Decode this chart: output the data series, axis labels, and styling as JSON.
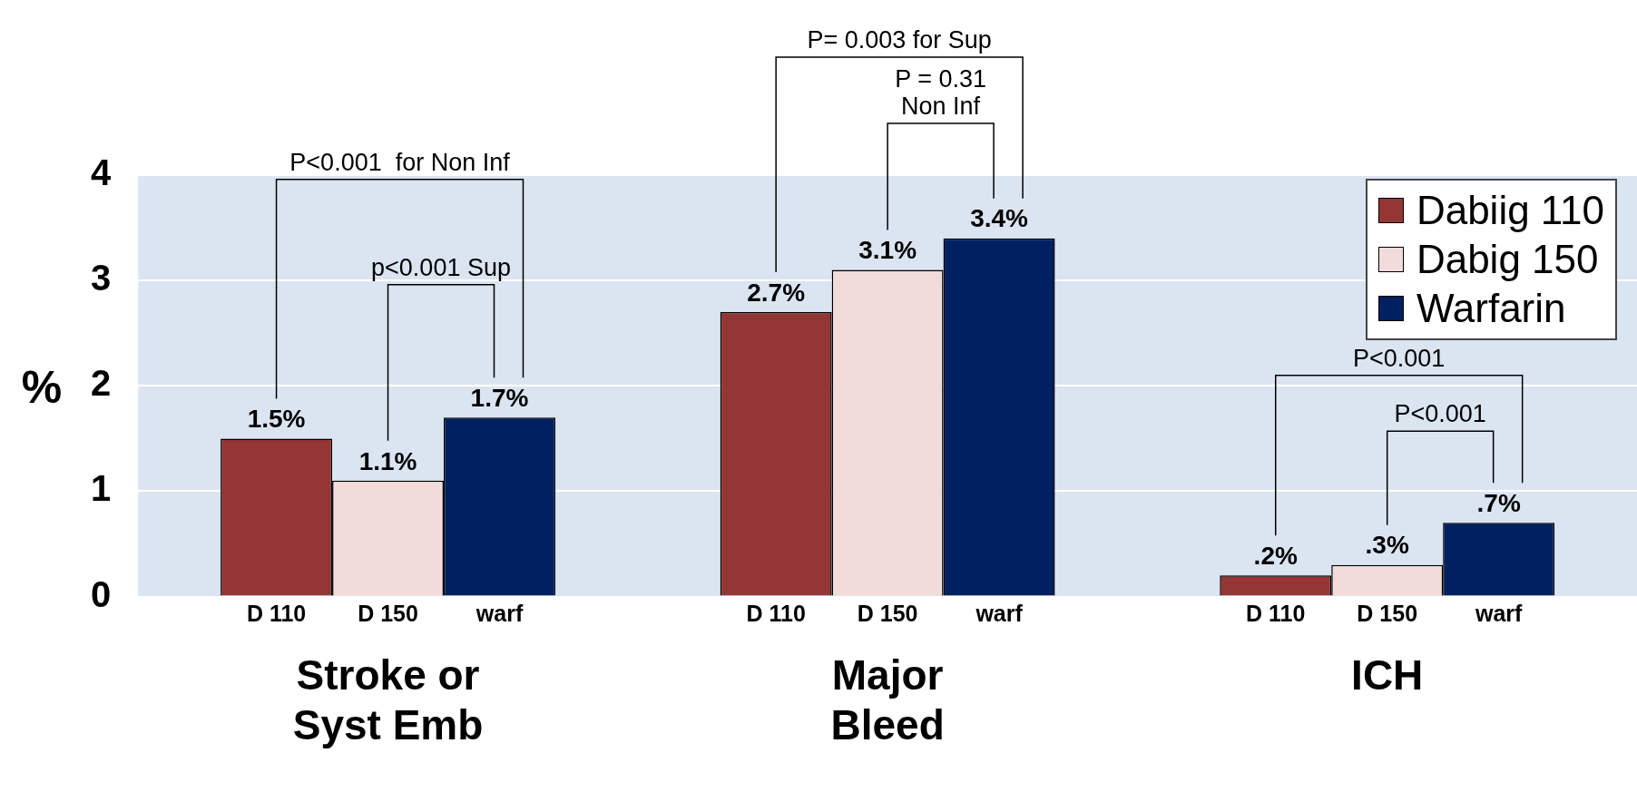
{
  "chart_data": {
    "type": "bar",
    "ylabel": "%",
    "categories": [
      "Stroke or Syst Emb",
      "Major Bleed",
      "ICH"
    ],
    "series": [
      {
        "name": "Dabiig 110",
        "color": "#943634",
        "values": [
          1.5,
          2.7,
          0.2
        ],
        "value_labels": [
          "1.5%",
          "2.7%",
          ".2%"
        ]
      },
      {
        "name": "Dabig 150",
        "color": "#f2dcdb",
        "values": [
          1.1,
          3.1,
          0.3
        ],
        "value_labels": [
          "1.1%",
          "3.1%",
          ".3%"
        ]
      },
      {
        "name": "Warfarin",
        "color": "#002060",
        "values": [
          1.7,
          3.4,
          0.7
        ],
        "value_labels": [
          "1.7%",
          "3.4%",
          ".7%"
        ]
      }
    ],
    "ylim": [
      0,
      4
    ],
    "yticks": [
      0,
      1,
      2,
      3,
      4
    ],
    "grid": "y",
    "legend": "top right",
    "annotations": [
      "D 110",
      "D 150",
      "warf",
      "P<0.001  for Non Inf",
      "p<0.001 Sup",
      "P= 0.003 for Sup",
      "P = 0.31\nNon Inf",
      "P<0.001",
      "P<0.001"
    ]
  }
}
